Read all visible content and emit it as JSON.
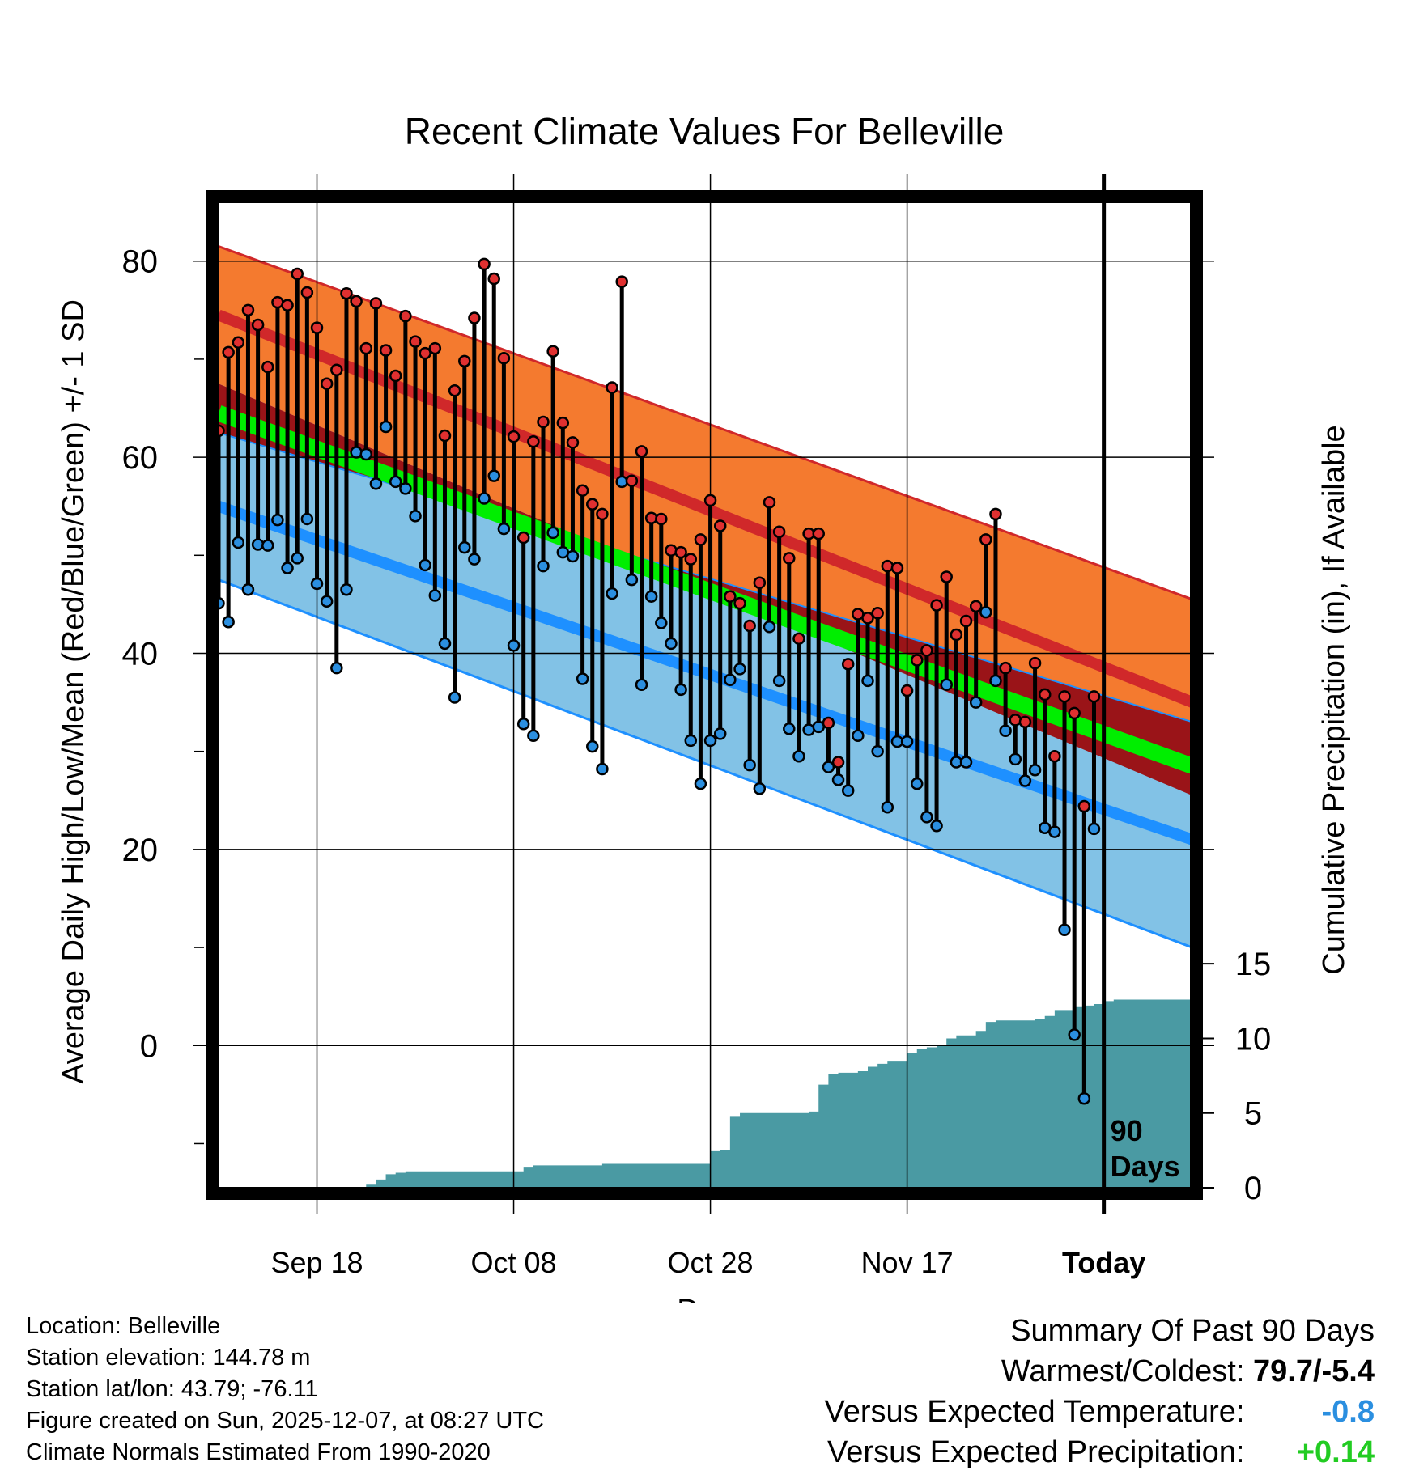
{
  "chart_data": {
    "type": "line",
    "title": "Recent Climate Values For Belleville",
    "xlabel": "Day",
    "ylabel_left": "Average Daily High/Low/Mean (Red/Blue/Green) +/- 1 SD",
    "ylabel_right": "Cumulative Precipitation (in), If Available",
    "x_range_days": [
      0,
      99
    ],
    "today_day": 90,
    "ylim": [
      -14.5,
      86
    ],
    "precip_ylim": [
      0,
      66
    ],
    "x_ticks": [
      {
        "day": 10,
        "label": "Sep 18"
      },
      {
        "day": 30,
        "label": "Oct 08"
      },
      {
        "day": 50,
        "label": "Oct 28"
      },
      {
        "day": 70,
        "label": "Nov 17"
      },
      {
        "day": 90,
        "label": "Today"
      }
    ],
    "y_ticks": [
      0,
      20,
      40,
      60,
      80
    ],
    "precip_ticks": [
      0,
      5,
      10,
      15
    ],
    "today_label_line1": "90",
    "today_label_line2": "Days",
    "normal_high": {
      "start": 74.5,
      "end": 35.0,
      "sd_upper_start": 81.5,
      "sd_upper_end": 45.5,
      "sd_lower_start": 67.5,
      "sd_lower_end": 25.5
    },
    "normal_low": {
      "start": 55.0,
      "end": 21.0,
      "sd_upper_start": 62.5,
      "sd_upper_end": 33.0,
      "sd_lower_start": 47.5,
      "sd_lower_end": 10.0
    },
    "normal_mean": {
      "start": 64.5,
      "end": 28.5
    },
    "highs": [
      62.7,
      70.7,
      71.7,
      75.0,
      73.5,
      69.2,
      75.8,
      75.5,
      78.7,
      76.8,
      73.2,
      67.5,
      68.9,
      76.7,
      75.9,
      71.1,
      75.7,
      70.9,
      68.3,
      74.4,
      71.8,
      70.6,
      71.1,
      62.2,
      66.8,
      69.8,
      74.2,
      79.7,
      78.2,
      70.1,
      62.1,
      51.8,
      61.6,
      63.6,
      70.8,
      63.5,
      61.5,
      56.6,
      55.2,
      54.2,
      67.1,
      77.9,
      57.6,
      60.6,
      53.8,
      53.7,
      50.5,
      50.3,
      49.6,
      51.6,
      55.6,
      53.0,
      45.8,
      45.1,
      42.8,
      47.2,
      55.4,
      52.4,
      49.7,
      41.5,
      52.2,
      52.2,
      32.9,
      28.9,
      38.9,
      44.0,
      43.6,
      44.1,
      48.9,
      48.7,
      36.2,
      39.3,
      40.3,
      44.9,
      47.8,
      41.9,
      43.3,
      44.8,
      51.6,
      54.2,
      38.5,
      33.2,
      33.0,
      39.0,
      35.8,
      29.5,
      35.6,
      33.9,
      24.4,
      35.6
    ],
    "lows": [
      45.1,
      43.2,
      51.3,
      46.5,
      51.1,
      51.0,
      53.6,
      48.7,
      49.7,
      53.7,
      47.1,
      45.3,
      38.5,
      46.5,
      60.5,
      60.3,
      57.3,
      63.1,
      57.5,
      56.8,
      54.0,
      49.0,
      45.9,
      41.0,
      35.5,
      50.8,
      49.6,
      55.8,
      58.1,
      52.7,
      40.8,
      32.8,
      31.6,
      48.9,
      52.3,
      50.3,
      49.9,
      37.4,
      30.5,
      28.2,
      46.1,
      57.5,
      47.5,
      36.8,
      45.8,
      43.1,
      41.0,
      36.3,
      31.1,
      26.7,
      31.1,
      31.8,
      37.3,
      38.4,
      28.6,
      26.2,
      42.7,
      37.2,
      32.3,
      29.5,
      32.2,
      32.5,
      28.4,
      27.1,
      26.0,
      31.6,
      37.2,
      30.0,
      24.3,
      31.0,
      31.0,
      26.7,
      23.3,
      22.4,
      36.8,
      28.9,
      28.9,
      35.0,
      44.2,
      37.2,
      32.1,
      29.2,
      27.0,
      28.1,
      22.2,
      21.8,
      11.8,
      1.1,
      -5.4,
      22.1
    ],
    "precip_cumulative": [
      0,
      0,
      0,
      0,
      0,
      0,
      0,
      0,
      0,
      0,
      0,
      0,
      0,
      0,
      0,
      0.2,
      0.55,
      0.9,
      1.0,
      1.1,
      1.1,
      1.1,
      1.1,
      1.1,
      1.1,
      1.1,
      1.1,
      1.1,
      1.1,
      1.1,
      1.1,
      1.4,
      1.5,
      1.5,
      1.5,
      1.5,
      1.5,
      1.5,
      1.5,
      1.6,
      1.6,
      1.6,
      1.6,
      1.6,
      1.6,
      1.6,
      1.6,
      1.6,
      1.6,
      1.6,
      2.5,
      2.55,
      4.8,
      5.0,
      5.0,
      5.0,
      5.0,
      5.0,
      5.0,
      5.0,
      5.1,
      6.9,
      7.6,
      7.7,
      7.7,
      7.8,
      8.1,
      8.3,
      8.5,
      8.5,
      9.0,
      9.3,
      9.4,
      9.5,
      10.0,
      10.2,
      10.2,
      10.5,
      11.1,
      11.2,
      11.2,
      11.2,
      11.2,
      11.3,
      11.5,
      11.9,
      11.9,
      12.1,
      12.2,
      12.3,
      12.5,
      12.6,
      12.6,
      12.6,
      12.6,
      12.6,
      12.6,
      12.6,
      12.6,
      12.6
    ],
    "colors": {
      "high_band": "#f47a2f",
      "high_line": "#d0282a",
      "low_band": "#82c2e6",
      "low_line": "#1e90ff",
      "mean_line": "#00ee00",
      "overlap": "#9a1418",
      "precip": "#4a9aa3",
      "high_marker": "#e03030",
      "low_marker": "#2b8fe0"
    }
  },
  "info": {
    "location": "Location: Belleville",
    "elevation": "Station elevation: 144.78 m",
    "latlon": "Station lat/lon: 43.79; -76.11",
    "created": "Figure created on Sun, 2025-12-07, at 08:27 UTC",
    "normals": "Climate Normals Estimated From 1990-2020"
  },
  "summary": {
    "title": "Summary Of Past 90 Days",
    "warm_cold_label": "Warmest/Coldest:",
    "warm_cold_value": "79.7/-5.4",
    "temp_label": "Versus Expected Temperature:",
    "temp_value": "-0.8",
    "temp_color": "#2b8fe0",
    "precip_label": "Versus Expected Precipitation:",
    "precip_value": "+0.14",
    "precip_color": "#22cc22"
  }
}
